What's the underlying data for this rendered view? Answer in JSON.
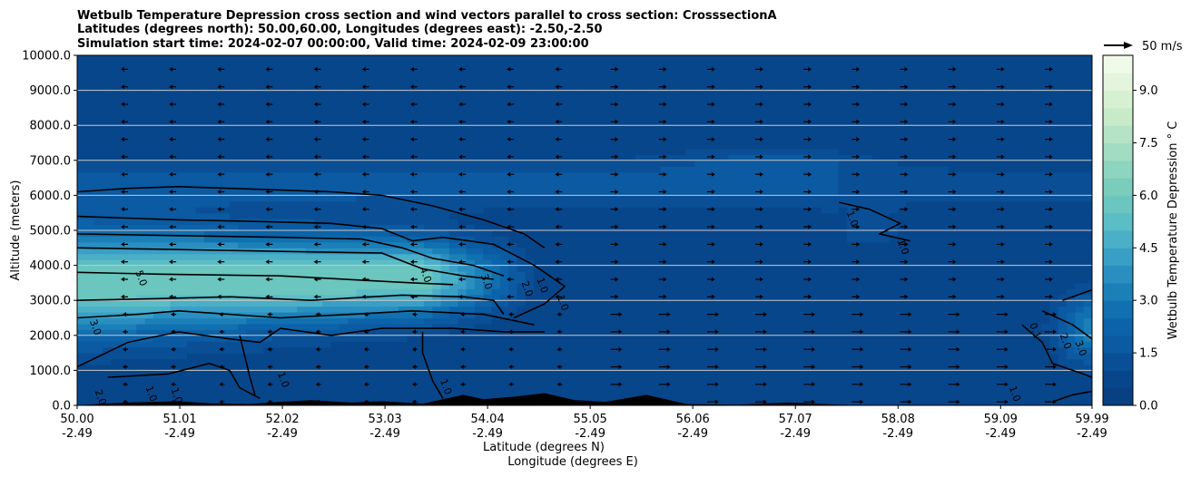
{
  "chart_data": {
    "type": "heatmap",
    "title": [
      "Wetbulb Temperature Depression cross section and wind vectors parallel to cross section: CrosssectionA",
      "Latitudes (degrees north): 50.00,60.00, Longitudes (degrees east): -2.50,-2.50",
      "Simulation start time: 2024-02-07 00:00:00, Valid time: 2024-02-09 23:00:00"
    ],
    "xlabel": "Latitude (degrees N)",
    "xlabel2": "Longitude (degrees E)",
    "ylabel": "Altitude (meters)",
    "ylim": [
      0,
      10000
    ],
    "xlim": [
      50.0,
      59.99
    ],
    "x_ticks": [
      {
        "lat": "50.00",
        "lon": "-2.49",
        "v": 50.0
      },
      {
        "lat": "51.01",
        "lon": "-2.49",
        "v": 51.01
      },
      {
        "lat": "52.02",
        "lon": "-2.49",
        "v": 52.02
      },
      {
        "lat": "53.03",
        "lon": "-2.49",
        "v": 53.03
      },
      {
        "lat": "54.04",
        "lon": "-2.49",
        "v": 54.04
      },
      {
        "lat": "55.05",
        "lon": "-2.49",
        "v": 55.05
      },
      {
        "lat": "56.06",
        "lon": "-2.49",
        "v": 56.06
      },
      {
        "lat": "57.07",
        "lon": "-2.49",
        "v": 57.07
      },
      {
        "lat": "58.08",
        "lon": "-2.49",
        "v": 58.08
      },
      {
        "lat": "59.09",
        "lon": "-2.49",
        "v": 59.09
      },
      {
        "lat": "59.99",
        "lon": "-2.49",
        "v": 59.99
      }
    ],
    "y_ticks": [
      {
        "label": "0.0",
        "v": 0
      },
      {
        "label": "1000.0",
        "v": 1000
      },
      {
        "label": "2000.0",
        "v": 2000
      },
      {
        "label": "3000.0",
        "v": 3000
      },
      {
        "label": "4000.0",
        "v": 4000
      },
      {
        "label": "5000.0",
        "v": 5000
      },
      {
        "label": "6000.0",
        "v": 6000
      },
      {
        "label": "7000.0",
        "v": 7000
      },
      {
        "label": "8000.0",
        "v": 8000
      },
      {
        "label": "9000.0",
        "v": 9000
      },
      {
        "label": "10000.0",
        "v": 10000
      }
    ],
    "grid": "horizontal",
    "colorbar": {
      "label": "Wetbulb Temperature Depression $^\\circ$C",
      "label_display": "Wetbulb Temperature Depression ° C",
      "range": [
        0,
        10
      ],
      "ticks": [
        "0.0",
        "1.5",
        "3.0",
        "4.5",
        "6.0",
        "7.5",
        "9.0"
      ],
      "tick_values": [
        0,
        1.5,
        3.0,
        4.5,
        6.0,
        7.5,
        9.0
      ],
      "levels": 20,
      "colors": [
        "#084081",
        "#08468b",
        "#0a4f96",
        "#0b5aa2",
        "#0c63a9",
        "#1170b0",
        "#1c80b8",
        "#2a8fc0",
        "#3a9fc6",
        "#4aafc7",
        "#5bbdc6",
        "#6ac6be",
        "#7bcdbb",
        "#8ed5bf",
        "#a2dcc2",
        "#b5e3c5",
        "#c7eac9",
        "#d6f0d2",
        "#e3f5dc",
        "#f0fae8"
      ]
    },
    "filled_field": {
      "description_levels": "background ~0.5 C; moist layer maximum ~6 C near 3500 m over 50-53.5N",
      "background": 0.5,
      "layer_max": 6.0
    },
    "contour_labels": [
      "5.0",
      "4.0",
      "3.0",
      "2.0",
      "1.0",
      "1.0",
      "3.0",
      "2.0",
      "1.0",
      "1.0",
      "1.0",
      "1.0",
      "1.0",
      "1.0",
      "0.1",
      "2.0",
      "3.0",
      "1.0"
    ],
    "wind_vector_key": "50 m/s",
    "terrain": "black orography along lower boundary"
  }
}
